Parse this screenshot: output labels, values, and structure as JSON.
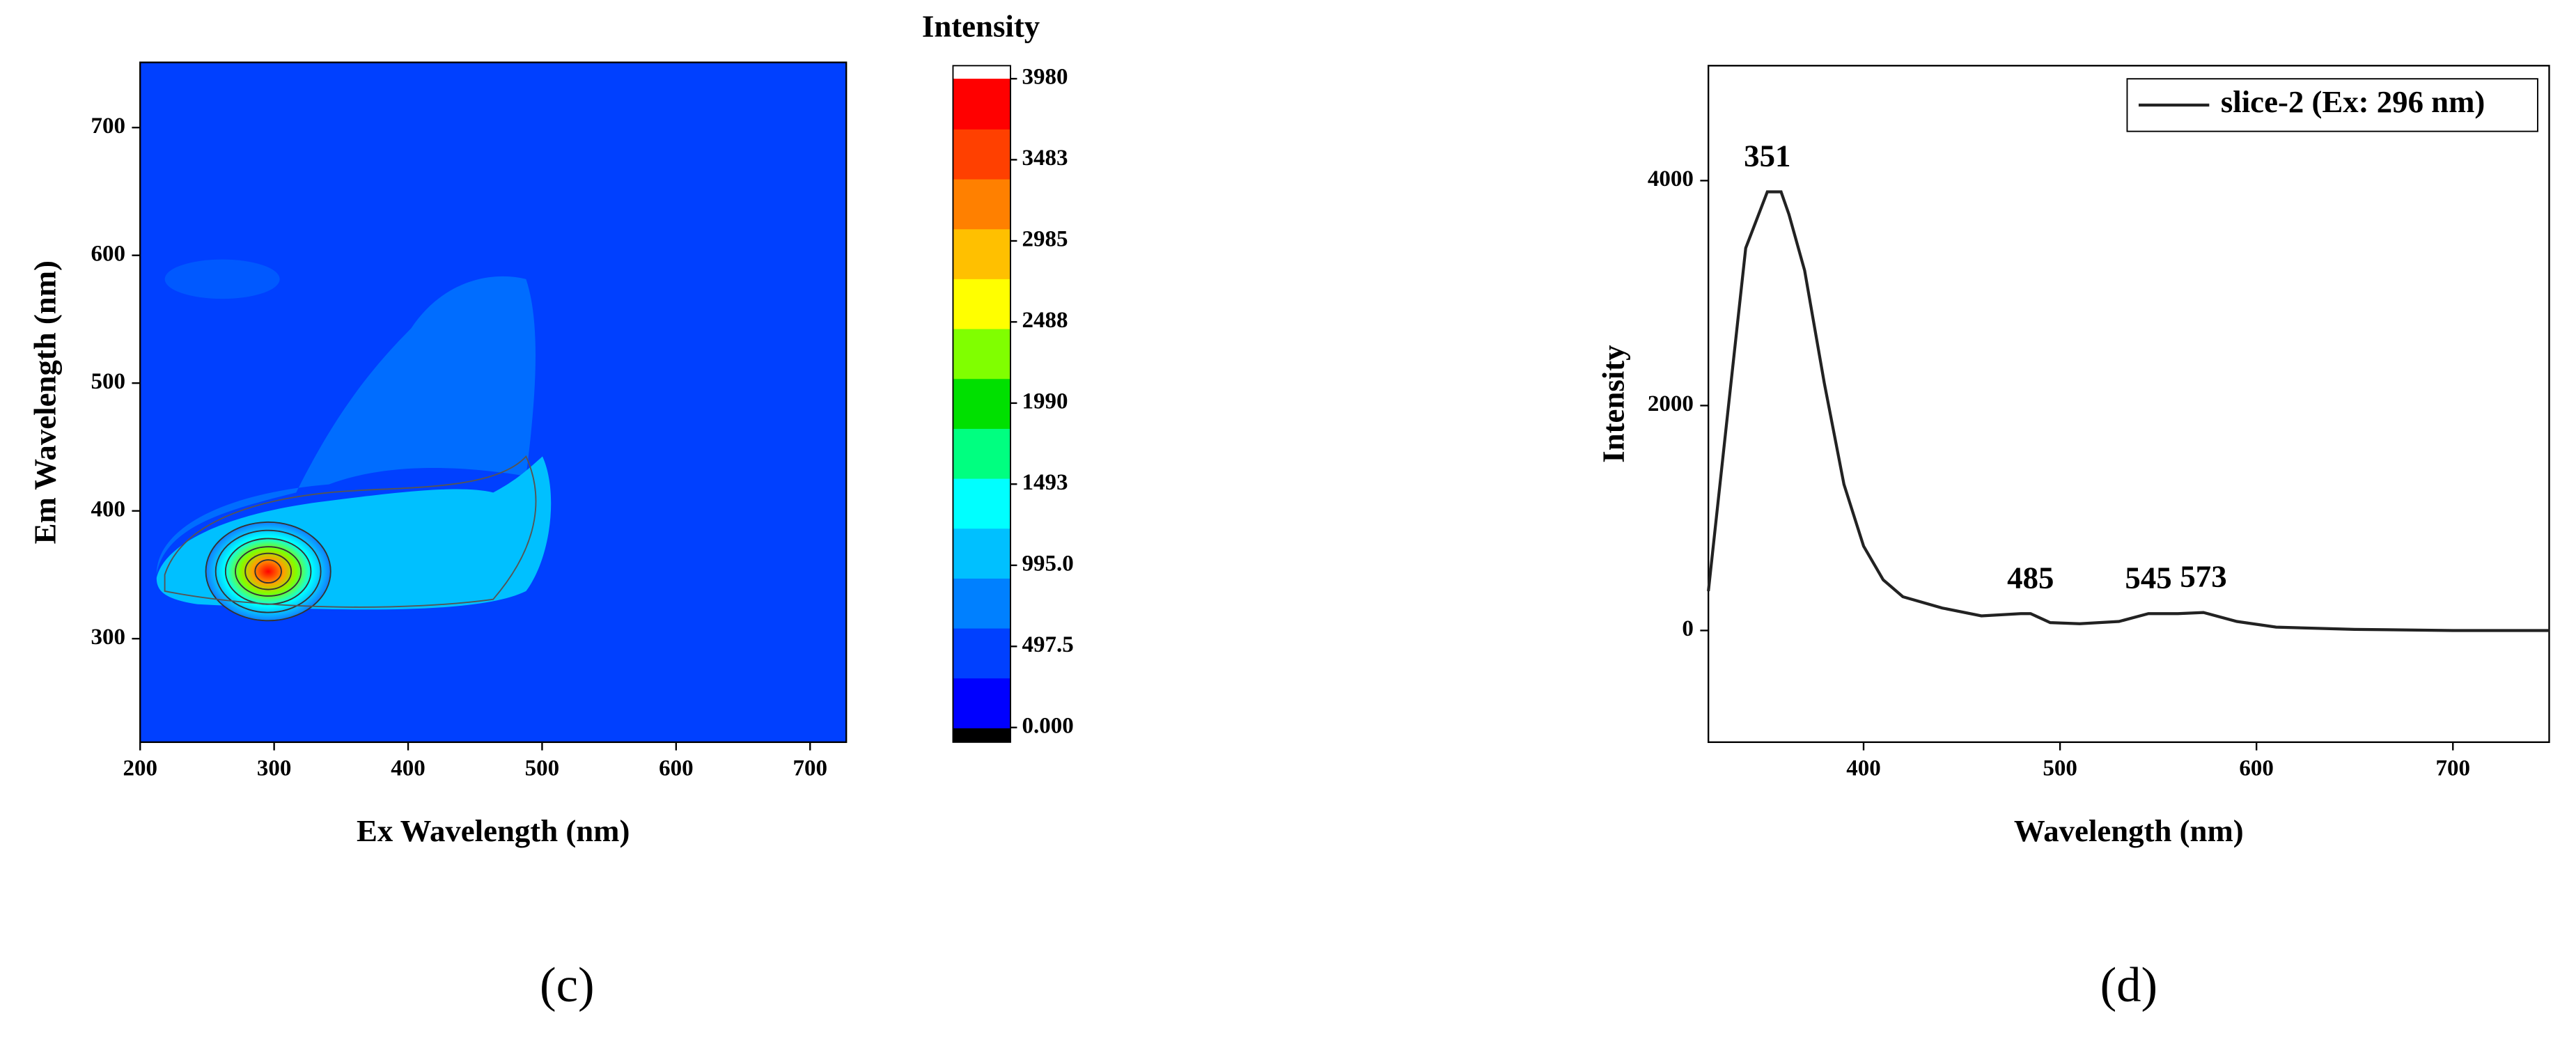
{
  "chart_data": [
    {
      "type": "contour",
      "caption": "(c)",
      "x_label": "Ex Wavelength (nm)",
      "y_label": "Em Wavelength (nm)",
      "xlim": [
        200,
        727
      ],
      "ylim": [
        219,
        751
      ],
      "xticks": [
        200,
        300,
        400,
        500,
        600,
        700
      ],
      "yticks": [
        300,
        400,
        500,
        600,
        700
      ],
      "colorbar": {
        "title": "Intensity",
        "zlim": [
          -90,
          4060
        ],
        "ticks": [
          {
            "value": 0,
            "label": "0.000"
          },
          497.5,
          {
            "value": 995,
            "label": "995.0"
          },
          1493,
          1990,
          2488,
          2985,
          3483,
          3980
        ],
        "colormap": [
          "#0000ff",
          "#0040ff",
          "#0080ff",
          "#00c0ff",
          "#00ffff",
          "#00ff80",
          "#00e000",
          "#80ff00",
          "#ffff00",
          "#ffc000",
          "#ff8000",
          "#ff4000",
          "#ff0000"
        ],
        "under_color": "#000000",
        "over_color": "#ffffff"
      }
    },
    {
      "type": "line",
      "caption": "(d)",
      "x_label": "Wavelength (nm)",
      "y_label": "Intensity",
      "xlim": [
        321,
        749
      ],
      "ylim": [
        -993,
        5022
      ],
      "xticks": [
        400,
        500,
        600,
        700
      ],
      "yticks": [
        0,
        2000,
        4000
      ],
      "x": [
        321,
        330,
        340,
        351,
        358,
        362,
        370,
        380,
        390,
        400,
        410,
        420,
        440,
        460,
        480,
        485,
        495,
        510,
        530,
        545,
        560,
        573,
        590,
        610,
        650,
        700,
        749
      ],
      "series": [
        {
          "name": "slice-2 (Ex: 296 nm)",
          "color": "#222222",
          "values": [
            350,
            1800,
            3400,
            3900,
            3900,
            3700,
            3200,
            2200,
            1300,
            750,
            450,
            300,
            200,
            130,
            150,
            150,
            70,
            60,
            80,
            150,
            150,
            160,
            80,
            30,
            10,
            0,
            0
          ]
        }
      ],
      "peaks": [
        351,
        485,
        545,
        573
      ],
      "legend": "upper right"
    }
  ]
}
